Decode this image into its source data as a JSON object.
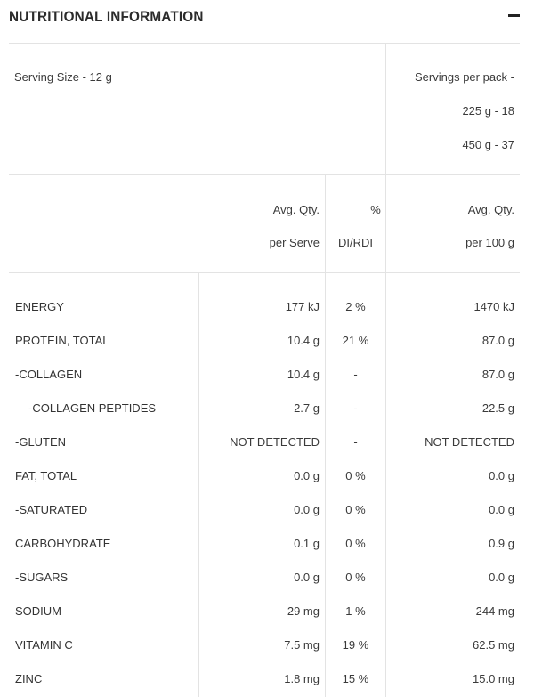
{
  "header": {
    "title": "NUTRITIONAL INFORMATION",
    "collapse_icon": "minus-icon"
  },
  "serving": {
    "size_label": "Serving Size - 12 g",
    "per_pack_label": "Servings per pack -",
    "per_pack_lines": [
      "225 g - 18",
      "450 g - 37"
    ]
  },
  "columns": {
    "serve_line1": "Avg. Qty.",
    "serve_line2": "per Serve",
    "rdi_line1": "%",
    "rdi_line2": "DI/RDI",
    "per100_line1": "Avg. Qty.",
    "per100_line2": "per 100 g"
  },
  "rows": [
    {
      "name": "ENERGY",
      "serve": "177 kJ",
      "rdi": "2 %",
      "per100": "1470 kJ",
      "indent": false
    },
    {
      "name": "PROTEIN, TOTAL",
      "serve": "10.4 g",
      "rdi": "21 %",
      "per100": "87.0 g",
      "indent": false
    },
    {
      "name": "-COLLAGEN",
      "serve": "10.4 g",
      "rdi": "-",
      "per100": "87.0 g",
      "indent": false
    },
    {
      "name": "-COLLAGEN PEPTIDES",
      "serve": "2.7 g",
      "rdi": "-",
      "per100": "22.5 g",
      "indent": true
    },
    {
      "name": "-GLUTEN",
      "serve": "NOT DETECTED",
      "rdi": "-",
      "per100": "NOT DETECTED",
      "indent": false
    },
    {
      "name": "FAT, TOTAL",
      "serve": "0.0 g",
      "rdi": "0 %",
      "per100": "0.0 g",
      "indent": false
    },
    {
      "name": "-SATURATED",
      "serve": "0.0 g",
      "rdi": "0 %",
      "per100": "0.0 g",
      "indent": false
    },
    {
      "name": "CARBOHYDRATE",
      "serve": "0.1 g",
      "rdi": "0 %",
      "per100": "0.9 g",
      "indent": false
    },
    {
      "name": "-SUGARS",
      "serve": "0.0 g",
      "rdi": "0 %",
      "per100": "0.0 g",
      "indent": false
    },
    {
      "name": "SODIUM",
      "serve": "29 mg",
      "rdi": "1 %",
      "per100": "244 mg",
      "indent": false
    },
    {
      "name": "VITAMIN C",
      "serve": "7.5 mg",
      "rdi": "19 %",
      "per100": "62.5 mg",
      "indent": false
    },
    {
      "name": "ZINC",
      "serve": "1.8 mg",
      "rdi": "15 %",
      "per100": "15.0 mg",
      "indent": false
    }
  ]
}
